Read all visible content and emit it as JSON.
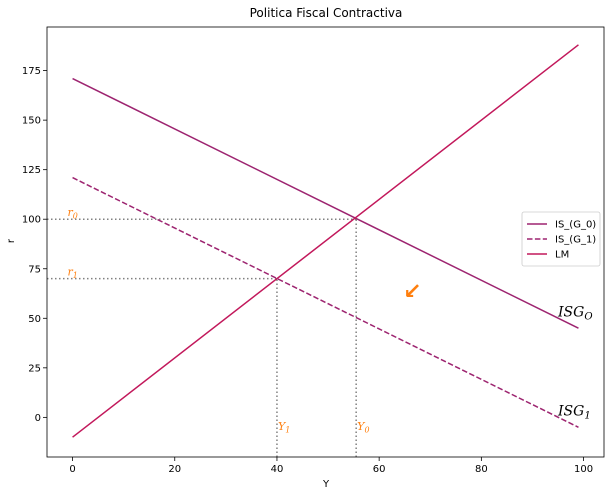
{
  "chart_data": {
    "type": "line",
    "title": "Politica Fiscal Contractiva",
    "xlabel": "Y",
    "ylabel": "r",
    "xlim": [
      -5,
      104
    ],
    "ylim": [
      -20,
      197
    ],
    "xticks": [
      0,
      20,
      40,
      60,
      80,
      100
    ],
    "yticks": [
      0,
      25,
      50,
      75,
      100,
      125,
      150,
      175
    ],
    "grid": false,
    "legend_position": "center-right",
    "series": [
      {
        "name": "IS_(G_0)",
        "style": "solid",
        "color": "#9d2470",
        "x": [
          0,
          99
        ],
        "y": [
          171,
          45
        ]
      },
      {
        "name": "IS_(G_1)",
        "style": "dashed",
        "color": "#9d2470",
        "x": [
          0,
          99
        ],
        "y": [
          121,
          -5
        ]
      },
      {
        "name": "LM",
        "style": "solid",
        "color": "#c2185b",
        "x": [
          0,
          99
        ],
        "y": [
          -10,
          188
        ]
      }
    ],
    "reference_lines": [
      {
        "style": "dotted",
        "x": [
          -5,
          55.5
        ],
        "y": [
          100,
          100
        ]
      },
      {
        "style": "dotted",
        "x": [
          -5,
          40
        ],
        "y": [
          70,
          70
        ]
      },
      {
        "style": "dotted",
        "x": [
          40,
          40
        ],
        "y": [
          -20,
          70
        ]
      },
      {
        "style": "dotted",
        "x": [
          55.5,
          55.5
        ],
        "y": [
          -20,
          100
        ]
      }
    ],
    "annotations": [
      {
        "base": "r",
        "sub": "0",
        "x": -1,
        "y": 101.5,
        "color": "#ff7f0e"
      },
      {
        "base": "r",
        "sub": "1",
        "x": -1,
        "y": 71.5,
        "color": "#ff7f0e"
      },
      {
        "base": "Y",
        "sub": "1",
        "x": 40.2,
        "y": -6.5,
        "color": "#ff7f0e"
      },
      {
        "base": "Y",
        "sub": "0",
        "x": 55.7,
        "y": -6.5,
        "color": "#ff7f0e"
      },
      {
        "base": "ISG",
        "sub": "O",
        "x": 95,
        "y": 51,
        "color": "#000000"
      },
      {
        "base": "ISG",
        "sub": "1",
        "x": 95,
        "y": 1,
        "color": "#000000"
      }
    ],
    "arrow": {
      "symbol": "↙",
      "x": 66.5,
      "y": 60,
      "color": "#ff7f0e"
    }
  }
}
